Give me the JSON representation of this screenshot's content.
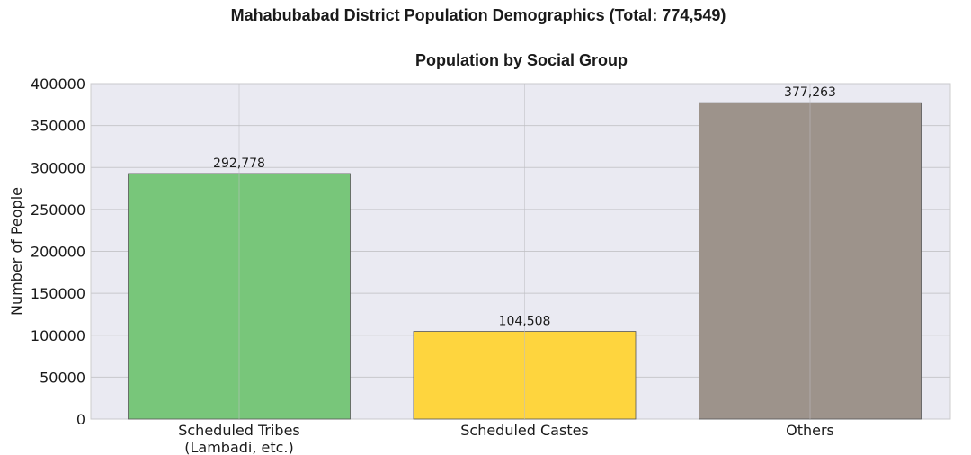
{
  "chart_data": {
    "type": "bar",
    "suptitle": "Mahabubabad District Population Demographics (Total: 774,549)",
    "title": "Population by Social Group",
    "xlabel": "",
    "ylabel": "Number of People",
    "categories": [
      [
        "Scheduled Tribes",
        "(Lambadi, etc.)"
      ],
      [
        "Scheduled Castes"
      ],
      [
        "Others"
      ]
    ],
    "values": [
      292778,
      104508,
      377263
    ],
    "value_labels": [
      "292,778",
      "104,508",
      "377,263"
    ],
    "colors": [
      "#78c67a",
      "#fed53e",
      "#9d938b"
    ],
    "ylim": [
      0,
      400000
    ],
    "yticks": [
      0,
      50000,
      100000,
      150000,
      200000,
      250000,
      300000,
      350000,
      400000
    ],
    "ytick_labels": [
      "0",
      "50000",
      "100000",
      "150000",
      "200000",
      "250000",
      "300000",
      "350000",
      "400000"
    ],
    "grid": true,
    "background": "#eaeaf2"
  }
}
